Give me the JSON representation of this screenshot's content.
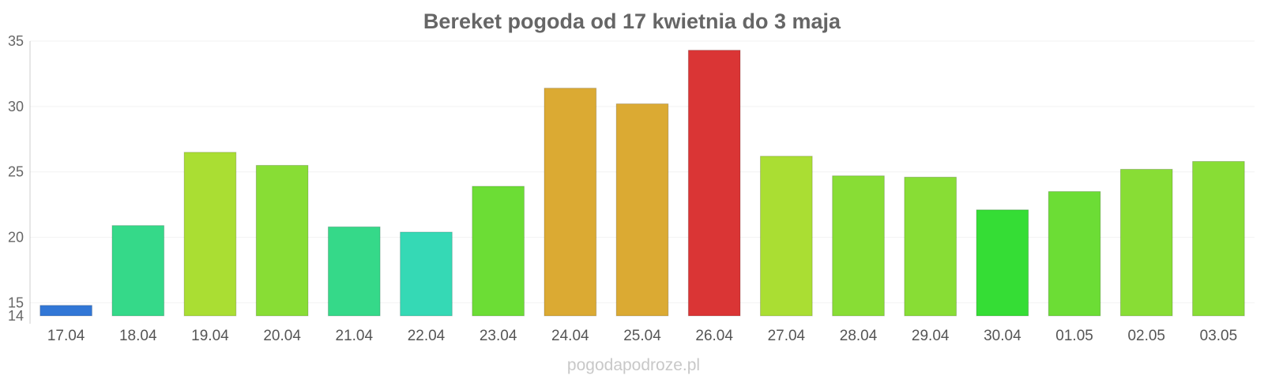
{
  "chart_data": {
    "type": "bar",
    "title": "Bereket pogoda od 17 kwietnia do 3 maja",
    "xlabel": "",
    "ylabel": "",
    "categories": [
      "17.04",
      "18.04",
      "19.04",
      "20.04",
      "21.04",
      "22.04",
      "23.04",
      "24.04",
      "25.04",
      "26.04",
      "27.04",
      "28.04",
      "29.04",
      "30.04",
      "01.05",
      "02.05",
      "03.05"
    ],
    "values": [
      14.8,
      20.9,
      26.5,
      25.5,
      20.8,
      20.4,
      23.9,
      31.4,
      30.2,
      34.3,
      26.2,
      24.7,
      24.6,
      22.1,
      23.5,
      25.2,
      25.8
    ],
    "colors": [
      "#3277d6",
      "#35d989",
      "#aade33",
      "#88dd35",
      "#35d989",
      "#35d9b5",
      "#6cdd35",
      "#dbaa33",
      "#dbaa33",
      "#da3535",
      "#aade33",
      "#88dd35",
      "#88dd35",
      "#35dd35",
      "#6cdd35",
      "#88dd35",
      "#88dd35"
    ],
    "ylim": [
      14,
      35
    ],
    "yticks": [
      14,
      15,
      20,
      25,
      30,
      35
    ],
    "grid": true,
    "legend": "none"
  },
  "watermark": "pogodapodroze.pl"
}
